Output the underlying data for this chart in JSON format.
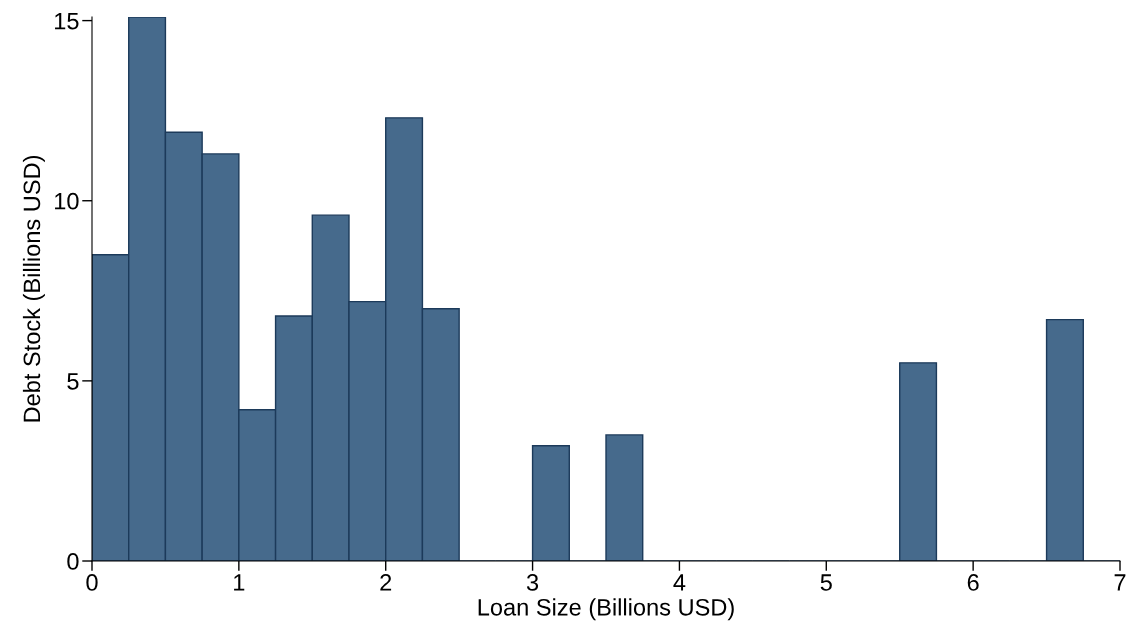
{
  "chart_data": {
    "type": "histogram",
    "xlabel": "Loan Size (Billions USD)",
    "ylabel": "Debt Stock (Billions USD)",
    "bins": [
      0,
      0.25,
      0.5,
      0.75,
      1,
      1.25,
      1.5,
      1.75,
      2,
      2.25,
      2.5,
      2.75,
      3,
      3.25,
      3.5,
      3.75,
      4,
      4.25,
      4.5,
      4.75,
      5,
      5.25,
      5.5,
      5.75,
      6,
      6.25,
      6.5,
      6.75,
      7
    ],
    "values": [
      8.5,
      15.1,
      11.9,
      11.3,
      4.2,
      6.8,
      9.6,
      7.2,
      12.3,
      7.0,
      0,
      0,
      3.2,
      0,
      3.5,
      0,
      0,
      0,
      0,
      0,
      0,
      0,
      5.5,
      0,
      0,
      0,
      6.7,
      0
    ],
    "color": "#466a8c",
    "xlim": [
      0,
      7
    ],
    "xticks": [
      0,
      1,
      2,
      3,
      4,
      5,
      6,
      7
    ],
    "ylim": [
      0,
      15.1
    ],
    "yticks": [
      0,
      5,
      10,
      15
    ],
    "grid": false
  }
}
